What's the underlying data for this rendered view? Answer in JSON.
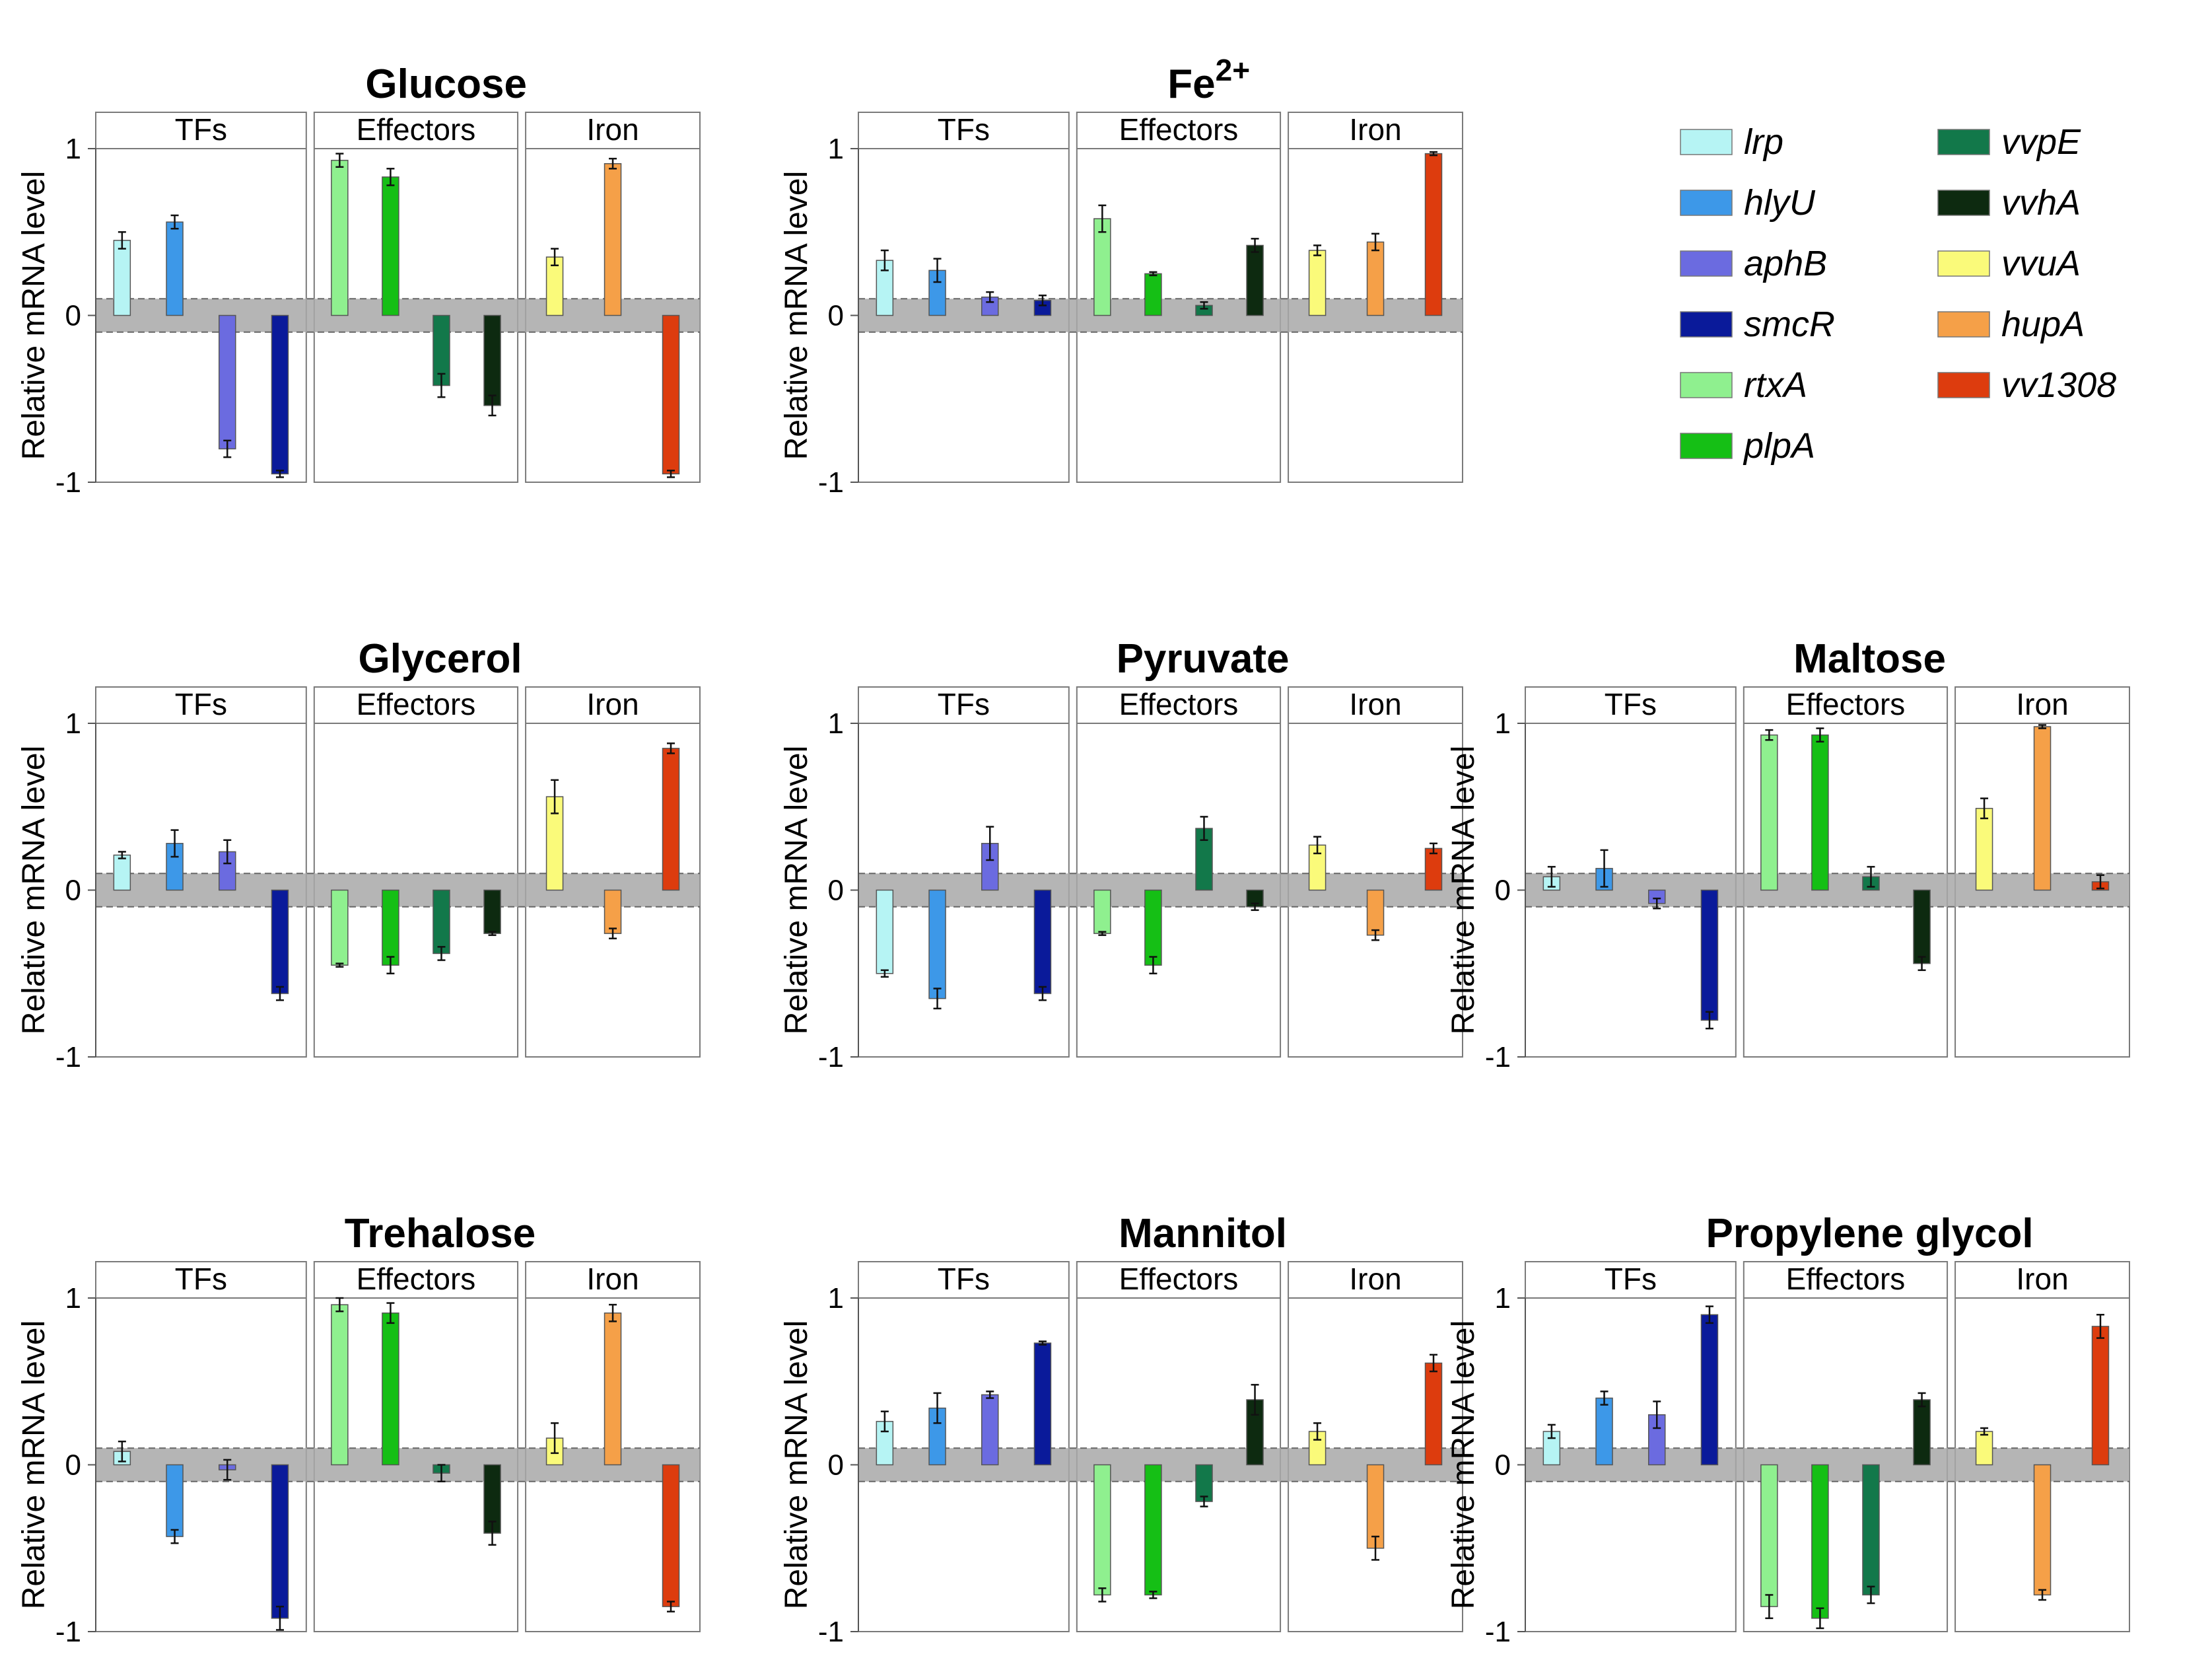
{
  "genes": [
    {
      "id": "lrp",
      "label": "lrp",
      "color": "#b6f4f4"
    },
    {
      "id": "hlyU",
      "label": "hlyU",
      "color": "#3d98e8"
    },
    {
      "id": "aphB",
      "label": "aphB",
      "color": "#6b6be0"
    },
    {
      "id": "smcR",
      "label": "smcR",
      "color": "#0a1a9a"
    },
    {
      "id": "rtxA",
      "label": "rtxA",
      "color": "#8ff08f"
    },
    {
      "id": "plpA",
      "label": "plpA",
      "color": "#15bf15"
    },
    {
      "id": "vvpE",
      "label": "vvpE",
      "color": "#12784a"
    },
    {
      "id": "vvhA",
      "label": "vvhA",
      "color": "#0d2a10"
    },
    {
      "id": "vvuA",
      "label": "vvuA",
      "color": "#fafa7a"
    },
    {
      "id": "hupA",
      "label": "hupA",
      "color": "#f5a048"
    },
    {
      "id": "vv1308",
      "label": "vv1308",
      "color": "#dd3c0e"
    }
  ],
  "group_labels": [
    "TFs",
    "Effectors",
    "Iron"
  ],
  "ylabel": "Relative mRNA level",
  "ytick_labels": [
    "1",
    "0",
    "-1"
  ],
  "chart_data": [
    {
      "type": "bar",
      "title": "Glucose",
      "categories": [
        "lrp",
        "hlyU",
        "aphB",
        "smcR",
        "rtxA",
        "plpA",
        "vvpE",
        "vvhA",
        "vvuA",
        "hupA",
        "vv1308"
      ],
      "values": [
        0.45,
        0.56,
        -0.8,
        -0.95,
        0.93,
        0.83,
        -0.42,
        -0.54,
        0.35,
        0.91,
        -0.95
      ],
      "errors": [
        0.05,
        0.04,
        0.05,
        0.02,
        0.04,
        0.05,
        0.07,
        0.06,
        0.05,
        0.03,
        0.02
      ],
      "ylim": [
        -1,
        1
      ]
    },
    {
      "type": "bar",
      "title": "Fe",
      "title_sup": "2+",
      "categories": [
        "lrp",
        "hlyU",
        "aphB",
        "smcR",
        "rtxA",
        "plpA",
        "vvpE",
        "vvhA",
        "vvuA",
        "hupA",
        "vv1308"
      ],
      "values": [
        0.33,
        0.27,
        0.11,
        0.09,
        0.58,
        0.25,
        0.06,
        0.42,
        0.39,
        0.44,
        0.97
      ],
      "errors": [
        0.06,
        0.07,
        0.03,
        0.03,
        0.08,
        0.01,
        0.02,
        0.04,
        0.03,
        0.05,
        0.01
      ],
      "ylim": [
        -1,
        1
      ]
    },
    {
      "type": "bar",
      "title": "Glycerol",
      "categories": [
        "lrp",
        "hlyU",
        "aphB",
        "smcR",
        "rtxA",
        "plpA",
        "vvpE",
        "vvhA",
        "vvuA",
        "hupA",
        "vv1308"
      ],
      "values": [
        0.21,
        0.28,
        0.23,
        -0.62,
        -0.45,
        -0.45,
        -0.38,
        -0.26,
        0.56,
        -0.26,
        0.85
      ],
      "errors": [
        0.02,
        0.08,
        0.07,
        0.04,
        0.01,
        0.05,
        0.04,
        0.01,
        0.1,
        0.03,
        0.03
      ],
      "ylim": [
        -1,
        1
      ]
    },
    {
      "type": "bar",
      "title": "Pyruvate",
      "categories": [
        "lrp",
        "hlyU",
        "aphB",
        "smcR",
        "rtxA",
        "plpA",
        "vvpE",
        "vvhA",
        "vvuA",
        "hupA",
        "vv1308"
      ],
      "values": [
        -0.5,
        -0.65,
        0.28,
        -0.62,
        -0.26,
        -0.45,
        0.37,
        -0.1,
        0.27,
        -0.27,
        0.25
      ],
      "errors": [
        0.02,
        0.06,
        0.1,
        0.04,
        0.01,
        0.05,
        0.07,
        0.02,
        0.05,
        0.03,
        0.03
      ],
      "ylim": [
        -1,
        1
      ]
    },
    {
      "type": "bar",
      "title": "Maltose",
      "categories": [
        "lrp",
        "hlyU",
        "aphB",
        "smcR",
        "rtxA",
        "plpA",
        "vvpE",
        "vvhA",
        "vvuA",
        "hupA",
        "vv1308"
      ],
      "values": [
        0.08,
        0.13,
        -0.08,
        -0.78,
        0.93,
        0.93,
        0.08,
        -0.44,
        0.49,
        0.98,
        0.05
      ],
      "errors": [
        0.06,
        0.11,
        0.03,
        0.05,
        0.03,
        0.04,
        0.06,
        0.04,
        0.06,
        0.01,
        0.04
      ],
      "ylim": [
        -1,
        1
      ]
    },
    {
      "type": "bar",
      "title": "Trehalose",
      "categories": [
        "lrp",
        "hlyU",
        "aphB",
        "smcR",
        "rtxA",
        "plpA",
        "vvpE",
        "vvhA",
        "vvuA",
        "hupA",
        "vv1308"
      ],
      "values": [
        0.08,
        -0.43,
        -0.03,
        -0.92,
        0.96,
        0.91,
        -0.05,
        -0.41,
        0.16,
        0.91,
        -0.85
      ],
      "errors": [
        0.06,
        0.04,
        0.06,
        0.07,
        0.04,
        0.06,
        0.05,
        0.07,
        0.09,
        0.05,
        0.03
      ],
      "ylim": [
        -1,
        1
      ]
    },
    {
      "type": "bar",
      "title": "Mannitol",
      "categories": [
        "lrp",
        "hlyU",
        "aphB",
        "smcR",
        "rtxA",
        "plpA",
        "vvpE",
        "vvhA",
        "vvuA",
        "hupA",
        "vv1308"
      ],
      "values": [
        0.26,
        0.34,
        0.42,
        0.73,
        -0.78,
        -0.78,
        -0.22,
        0.39,
        0.2,
        -0.5,
        0.61
      ],
      "errors": [
        0.06,
        0.09,
        0.02,
        0.01,
        0.04,
        0.02,
        0.03,
        0.09,
        0.05,
        0.07,
        0.05
      ],
      "ylim": [
        -1,
        1
      ]
    },
    {
      "type": "bar",
      "title": "Propylene glycol",
      "categories": [
        "lrp",
        "hlyU",
        "aphB",
        "smcR",
        "rtxA",
        "plpA",
        "vvpE",
        "vvhA",
        "vvuA",
        "hupA",
        "vv1308"
      ],
      "values": [
        0.2,
        0.4,
        0.3,
        0.9,
        -0.85,
        -0.92,
        -0.78,
        0.39,
        0.2,
        -0.78,
        0.83
      ],
      "errors": [
        0.04,
        0.04,
        0.08,
        0.05,
        0.07,
        0.06,
        0.05,
        0.04,
        0.02,
        0.03,
        0.07
      ],
      "ylim": [
        -1,
        1
      ]
    }
  ]
}
